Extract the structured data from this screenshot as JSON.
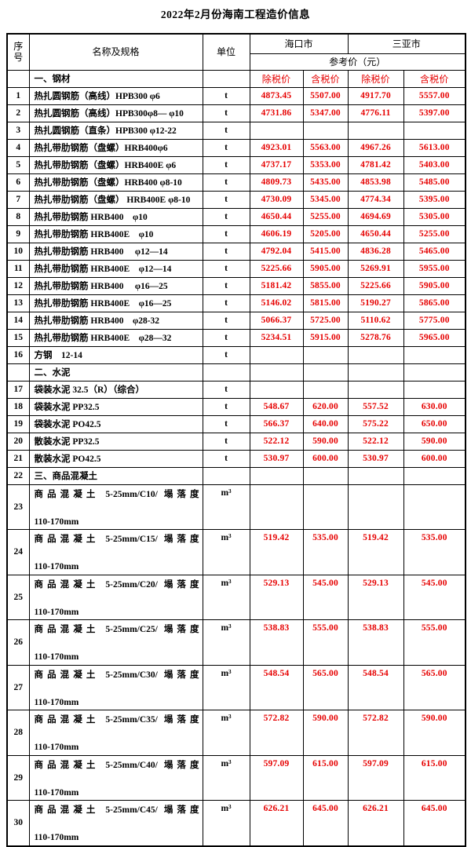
{
  "title": "2022年2月份海南工程造价信息",
  "colors": {
    "price_red": "#e60000",
    "border_black": "#000000"
  },
  "table": {
    "headers": {
      "no": "序号",
      "name": "名称及规格",
      "unit": "单位",
      "city_haikou": "海口市",
      "city_sanya": "三亚市",
      "ref_price": "参考价（元）"
    },
    "price_type_labels": [
      "除税价",
      "含税价",
      "除税价",
      "含税价"
    ],
    "rows": [
      {
        "no": "",
        "name": "一、钢材",
        "unit": "",
        "prices": [
          "除税价",
          "含税价",
          "除税价",
          "含税价"
        ],
        "labels": true,
        "section": true
      },
      {
        "no": "1",
        "name": "热扎圆钢筋（高线）HPB300 φ6",
        "unit": "t",
        "prices": [
          "4873.45",
          "5507.00",
          "4917.70",
          "5557.00"
        ]
      },
      {
        "no": "2",
        "name": "热扎圆钢筋（高线）HPB300φ8— φ10",
        "unit": "t",
        "prices": [
          "4731.86",
          "5347.00",
          "4776.11",
          "5397.00"
        ]
      },
      {
        "no": "3",
        "name": "热扎圆钢筋（直条）HPB300 φ12-22",
        "unit": "t",
        "prices": [
          "",
          "",
          "",
          ""
        ]
      },
      {
        "no": "4",
        "name": "热扎带肋钢筋（盘螺）HRB400φ6",
        "unit": "t",
        "prices": [
          "4923.01",
          "5563.00",
          "4967.26",
          "5613.00"
        ]
      },
      {
        "no": "5",
        "name": "热扎带肋钢筋（盘螺）HRB400E φ6",
        "unit": "t",
        "prices": [
          "4737.17",
          "5353.00",
          "4781.42",
          "5403.00"
        ]
      },
      {
        "no": "6",
        "name": "热扎带肋钢筋（盘螺）HRB400 φ8-10",
        "unit": "t",
        "prices": [
          "4809.73",
          "5435.00",
          "4853.98",
          "5485.00"
        ]
      },
      {
        "no": "7",
        "name": "热扎带肋钢筋（盘螺） HRB400E φ8-10",
        "unit": "t",
        "prices": [
          "4730.09",
          "5345.00",
          "4774.34",
          "5395.00"
        ]
      },
      {
        "no": "8",
        "name": "热扎带肋钢筋 HRB400　φ10",
        "unit": "t",
        "prices": [
          "4650.44",
          "5255.00",
          "4694.69",
          "5305.00"
        ]
      },
      {
        "no": "9",
        "name": "热扎带肋钢筋 HRB400E　φ10",
        "unit": "t",
        "prices": [
          "4606.19",
          "5205.00",
          "4650.44",
          "5255.00"
        ]
      },
      {
        "no": "10",
        "name": "热扎带肋钢筋 HRB400　 φ12—14",
        "unit": "t",
        "prices": [
          "4792.04",
          "5415.00",
          "4836.28",
          "5465.00"
        ]
      },
      {
        "no": "11",
        "name": "热扎带肋钢筋 HRB400E　φ12—14",
        "unit": "t",
        "prices": [
          "5225.66",
          "5905.00",
          "5269.91",
          "5955.00"
        ]
      },
      {
        "no": "12",
        "name": "热扎带肋钢筋 HRB400　 φ16—25",
        "unit": "t",
        "prices": [
          "5181.42",
          "5855.00",
          "5225.66",
          "5905.00"
        ]
      },
      {
        "no": "13",
        "name": "热扎带肋钢筋 HRB400E　φ16—25",
        "unit": "t",
        "prices": [
          "5146.02",
          "5815.00",
          "5190.27",
          "5865.00"
        ]
      },
      {
        "no": "14",
        "name": "热扎带肋钢筋 HRB400　φ28-32",
        "unit": "t",
        "prices": [
          "5066.37",
          "5725.00",
          "5110.62",
          "5775.00"
        ]
      },
      {
        "no": "15",
        "name": "热扎带肋钢筋 HRB400E　φ28—32",
        "unit": "t",
        "prices": [
          "5234.51",
          "5915.00",
          "5278.76",
          "5965.00"
        ]
      },
      {
        "no": "16",
        "name": "方钢　12-14",
        "unit": "t",
        "prices": [
          "",
          "",
          "",
          ""
        ]
      },
      {
        "no": "",
        "name": "二、水泥",
        "unit": "",
        "prices": [
          "",
          "",
          "",
          ""
        ],
        "section": true
      },
      {
        "no": "17",
        "name": "袋装水泥 32.5（R）（综合）",
        "unit": "t",
        "prices": [
          "",
          "",
          "",
          ""
        ]
      },
      {
        "no": "18",
        "name": "袋装水泥 PP32.5",
        "unit": "t",
        "prices": [
          "548.67",
          "620.00",
          "557.52",
          "630.00"
        ]
      },
      {
        "no": "19",
        "name": "袋装水泥 PO42.5",
        "unit": "t",
        "prices": [
          "566.37",
          "640.00",
          "575.22",
          "650.00"
        ]
      },
      {
        "no": "20",
        "name": "散装水泥 PP32.5",
        "unit": "t",
        "prices": [
          "522.12",
          "590.00",
          "522.12",
          "590.00"
        ]
      },
      {
        "no": "21",
        "name": "散装水泥 PO42.5",
        "unit": "t",
        "prices": [
          "530.97",
          "600.00",
          "530.97",
          "600.00"
        ]
      },
      {
        "no": "22",
        "name": "三、商品混凝土",
        "unit": "",
        "prices": [
          "",
          "",
          "",
          ""
        ],
        "section": true
      },
      {
        "no": "23",
        "name": "商品混凝土 5-25mm/C10/ 塌落度\n110-170mm",
        "unit": "m³",
        "prices": [
          "",
          "",
          "",
          ""
        ],
        "tall": true
      },
      {
        "no": "24",
        "name": "商品混凝土 5-25mm/C15/ 塌落度\n110-170mm",
        "unit": "m³",
        "prices": [
          "519.42",
          "535.00",
          "519.42",
          "535.00"
        ],
        "tall": true
      },
      {
        "no": "25",
        "name": "商品混凝土 5-25mm/C20/ 塌落度\n110-170mm",
        "unit": "m³",
        "prices": [
          "529.13",
          "545.00",
          "529.13",
          "545.00"
        ],
        "tall": true
      },
      {
        "no": "26",
        "name": "商品混凝土 5-25mm/C25/ 塌落度\n110-170mm",
        "unit": "m³",
        "prices": [
          "538.83",
          "555.00",
          "538.83",
          "555.00"
        ],
        "tall": true
      },
      {
        "no": "27",
        "name": "商品混凝土 5-25mm/C30/ 塌落度\n110-170mm",
        "unit": "m³",
        "prices": [
          "548.54",
          "565.00",
          "548.54",
          "565.00"
        ],
        "tall": true
      },
      {
        "no": "28",
        "name": "商品混凝土 5-25mm/C35/ 塌落度\n110-170mm",
        "unit": "m³",
        "prices": [
          "572.82",
          "590.00",
          "572.82",
          "590.00"
        ],
        "tall": true
      },
      {
        "no": "29",
        "name": "商品混凝土 5-25mm/C40/ 塌落度\n110-170mm",
        "unit": "m³",
        "prices": [
          "597.09",
          "615.00",
          "597.09",
          "615.00"
        ],
        "tall": true
      },
      {
        "no": "30",
        "name": "商品混凝土 5-25mm/C45/ 塌落度\n110-170mm",
        "unit": "m³",
        "prices": [
          "626.21",
          "645.00",
          "626.21",
          "645.00"
        ],
        "tall": true
      }
    ]
  }
}
